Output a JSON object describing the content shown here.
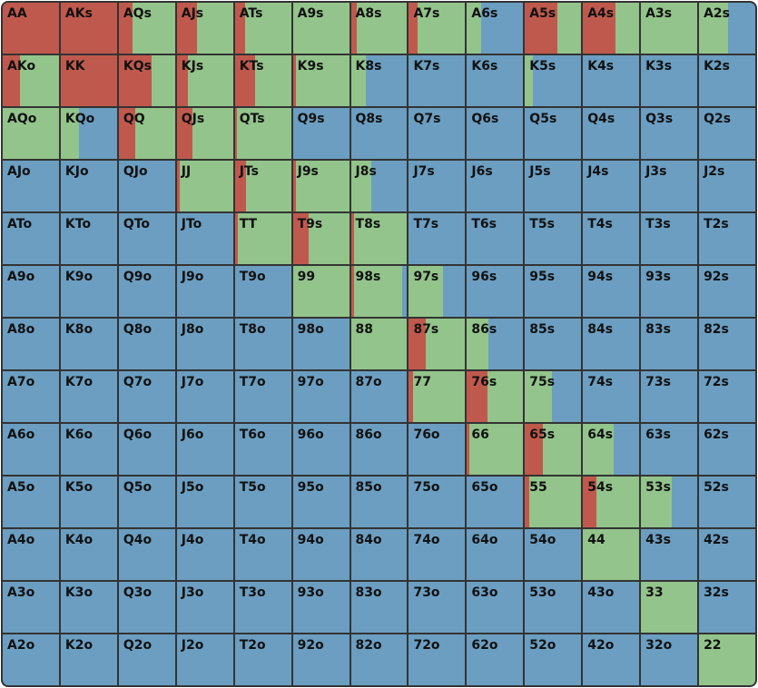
{
  "colors": {
    "raise": "#c0594d",
    "call": "#93c48b",
    "fold": "#6b9ec1"
  },
  "chart_data": {
    "type": "heatmap",
    "rows": [
      [
        {
          "hand": "AA",
          "raise": 1.0,
          "call": 0.0
        },
        {
          "hand": "AKs",
          "raise": 1.0,
          "call": 0.0
        },
        {
          "hand": "AQs",
          "raise": 0.24,
          "call": 0.76
        },
        {
          "hand": "AJs",
          "raise": 0.36,
          "call": 0.64
        },
        {
          "hand": "ATs",
          "raise": 0.18,
          "call": 0.82
        },
        {
          "hand": "A9s",
          "raise": 0.0,
          "call": 1.0
        },
        {
          "hand": "A8s",
          "raise": 0.1,
          "call": 0.9
        },
        {
          "hand": "A7s",
          "raise": 0.16,
          "call": 0.84
        },
        {
          "hand": "A6s",
          "raise": 0.0,
          "call": 0.26
        },
        {
          "hand": "A5s",
          "raise": 0.58,
          "call": 0.42
        },
        {
          "hand": "A4s",
          "raise": 0.58,
          "call": 0.42
        },
        {
          "hand": "A3s",
          "raise": 0.0,
          "call": 1.0
        },
        {
          "hand": "A2s",
          "raise": 0.0,
          "call": 0.52
        }
      ],
      [
        {
          "hand": "AKo",
          "raise": 0.3,
          "call": 0.7
        },
        {
          "hand": "KK",
          "raise": 1.0,
          "call": 0.0
        },
        {
          "hand": "KQs",
          "raise": 0.58,
          "call": 0.42
        },
        {
          "hand": "KJs",
          "raise": 0.2,
          "call": 0.8
        },
        {
          "hand": "KTs",
          "raise": 0.36,
          "call": 0.64
        },
        {
          "hand": "K9s",
          "raise": 0.05,
          "call": 0.95
        },
        {
          "hand": "K8s",
          "raise": 0.0,
          "call": 0.26
        },
        {
          "hand": "K7s",
          "raise": 0.0,
          "call": 0.0
        },
        {
          "hand": "K6s",
          "raise": 0.0,
          "call": 0.0
        },
        {
          "hand": "K5s",
          "raise": 0.0,
          "call": 0.14
        },
        {
          "hand": "K4s",
          "raise": 0.0,
          "call": 0.0
        },
        {
          "hand": "K3s",
          "raise": 0.0,
          "call": 0.0
        },
        {
          "hand": "K2s",
          "raise": 0.0,
          "call": 0.0
        }
      ],
      [
        {
          "hand": "AQo",
          "raise": 0.0,
          "call": 1.0
        },
        {
          "hand": "KQo",
          "raise": 0.0,
          "call": 0.32
        },
        {
          "hand": "QQ",
          "raise": 0.3,
          "call": 0.7
        },
        {
          "hand": "QJs",
          "raise": 0.28,
          "call": 0.72
        },
        {
          "hand": "QTs",
          "raise": 0.04,
          "call": 0.96
        },
        {
          "hand": "Q9s",
          "raise": 0.0,
          "call": 0.0
        },
        {
          "hand": "Q8s",
          "raise": 0.0,
          "call": 0.0
        },
        {
          "hand": "Q7s",
          "raise": 0.0,
          "call": 0.0
        },
        {
          "hand": "Q6s",
          "raise": 0.0,
          "call": 0.0
        },
        {
          "hand": "Q5s",
          "raise": 0.0,
          "call": 0.0
        },
        {
          "hand": "Q4s",
          "raise": 0.0,
          "call": 0.0
        },
        {
          "hand": "Q3s",
          "raise": 0.0,
          "call": 0.0
        },
        {
          "hand": "Q2s",
          "raise": 0.0,
          "call": 0.0
        }
      ],
      [
        {
          "hand": "AJo",
          "raise": 0.0,
          "call": 0.0
        },
        {
          "hand": "KJo",
          "raise": 0.0,
          "call": 0.0
        },
        {
          "hand": "QJo",
          "raise": 0.0,
          "call": 0.0
        },
        {
          "hand": "JJ",
          "raise": 0.06,
          "call": 0.94
        },
        {
          "hand": "JTs",
          "raise": 0.2,
          "call": 0.8
        },
        {
          "hand": "J9s",
          "raise": 0.05,
          "call": 0.95
        },
        {
          "hand": "J8s",
          "raise": 0.0,
          "call": 0.36
        },
        {
          "hand": "J7s",
          "raise": 0.0,
          "call": 0.0
        },
        {
          "hand": "J6s",
          "raise": 0.0,
          "call": 0.0
        },
        {
          "hand": "J5s",
          "raise": 0.0,
          "call": 0.0
        },
        {
          "hand": "J4s",
          "raise": 0.0,
          "call": 0.0
        },
        {
          "hand": "J3s",
          "raise": 0.0,
          "call": 0.0
        },
        {
          "hand": "J2s",
          "raise": 0.0,
          "call": 0.0
        }
      ],
      [
        {
          "hand": "ATo",
          "raise": 0.0,
          "call": 0.0
        },
        {
          "hand": "KTo",
          "raise": 0.0,
          "call": 0.0
        },
        {
          "hand": "QTo",
          "raise": 0.0,
          "call": 0.0
        },
        {
          "hand": "JTo",
          "raise": 0.0,
          "call": 0.0
        },
        {
          "hand": "TT",
          "raise": 0.06,
          "call": 0.94
        },
        {
          "hand": "T9s",
          "raise": 0.28,
          "call": 0.72
        },
        {
          "hand": "T8s",
          "raise": 0.05,
          "call": 0.95
        },
        {
          "hand": "T7s",
          "raise": 0.0,
          "call": 0.0
        },
        {
          "hand": "T6s",
          "raise": 0.0,
          "call": 0.0
        },
        {
          "hand": "T5s",
          "raise": 0.0,
          "call": 0.0
        },
        {
          "hand": "T4s",
          "raise": 0.0,
          "call": 0.0
        },
        {
          "hand": "T3s",
          "raise": 0.0,
          "call": 0.0
        },
        {
          "hand": "T2s",
          "raise": 0.0,
          "call": 0.0
        }
      ],
      [
        {
          "hand": "A9o",
          "raise": 0.0,
          "call": 0.0
        },
        {
          "hand": "K9o",
          "raise": 0.0,
          "call": 0.0
        },
        {
          "hand": "Q9o",
          "raise": 0.0,
          "call": 0.0
        },
        {
          "hand": "J9o",
          "raise": 0.0,
          "call": 0.0
        },
        {
          "hand": "T9o",
          "raise": 0.0,
          "call": 0.0
        },
        {
          "hand": "99",
          "raise": 0.0,
          "call": 1.0
        },
        {
          "hand": "98s",
          "raise": 0.06,
          "call": 0.86
        },
        {
          "hand": "97s",
          "raise": 0.0,
          "call": 0.6
        },
        {
          "hand": "96s",
          "raise": 0.0,
          "call": 0.0
        },
        {
          "hand": "95s",
          "raise": 0.0,
          "call": 0.0
        },
        {
          "hand": "94s",
          "raise": 0.0,
          "call": 0.0
        },
        {
          "hand": "93s",
          "raise": 0.0,
          "call": 0.0
        },
        {
          "hand": "92s",
          "raise": 0.0,
          "call": 0.0
        }
      ],
      [
        {
          "hand": "A8o",
          "raise": 0.0,
          "call": 0.0
        },
        {
          "hand": "K8o",
          "raise": 0.0,
          "call": 0.0
        },
        {
          "hand": "Q8o",
          "raise": 0.0,
          "call": 0.0
        },
        {
          "hand": "J8o",
          "raise": 0.0,
          "call": 0.0
        },
        {
          "hand": "T8o",
          "raise": 0.0,
          "call": 0.0
        },
        {
          "hand": "98o",
          "raise": 0.0,
          "call": 0.0
        },
        {
          "hand": "88",
          "raise": 0.0,
          "call": 1.0
        },
        {
          "hand": "87s",
          "raise": 0.3,
          "call": 0.7
        },
        {
          "hand": "86s",
          "raise": 0.0,
          "call": 0.38
        },
        {
          "hand": "85s",
          "raise": 0.0,
          "call": 0.0
        },
        {
          "hand": "84s",
          "raise": 0.0,
          "call": 0.0
        },
        {
          "hand": "83s",
          "raise": 0.0,
          "call": 0.0
        },
        {
          "hand": "82s",
          "raise": 0.0,
          "call": 0.0
        }
      ],
      [
        {
          "hand": "A7o",
          "raise": 0.0,
          "call": 0.0
        },
        {
          "hand": "K7o",
          "raise": 0.0,
          "call": 0.0
        },
        {
          "hand": "Q7o",
          "raise": 0.0,
          "call": 0.0
        },
        {
          "hand": "J7o",
          "raise": 0.0,
          "call": 0.0
        },
        {
          "hand": "T7o",
          "raise": 0.0,
          "call": 0.0
        },
        {
          "hand": "97o",
          "raise": 0.0,
          "call": 0.0
        },
        {
          "hand": "87o",
          "raise": 0.0,
          "call": 0.0
        },
        {
          "hand": "77",
          "raise": 0.08,
          "call": 0.92
        },
        {
          "hand": "76s",
          "raise": 0.36,
          "call": 0.64
        },
        {
          "hand": "75s",
          "raise": 0.0,
          "call": 0.48
        },
        {
          "hand": "74s",
          "raise": 0.0,
          "call": 0.0
        },
        {
          "hand": "73s",
          "raise": 0.0,
          "call": 0.0
        },
        {
          "hand": "72s",
          "raise": 0.0,
          "call": 0.0
        }
      ],
      [
        {
          "hand": "A6o",
          "raise": 0.0,
          "call": 0.0
        },
        {
          "hand": "K6o",
          "raise": 0.0,
          "call": 0.0
        },
        {
          "hand": "Q6o",
          "raise": 0.0,
          "call": 0.0
        },
        {
          "hand": "J6o",
          "raise": 0.0,
          "call": 0.0
        },
        {
          "hand": "T6o",
          "raise": 0.0,
          "call": 0.0
        },
        {
          "hand": "96o",
          "raise": 0.0,
          "call": 0.0
        },
        {
          "hand": "86o",
          "raise": 0.0,
          "call": 0.0
        },
        {
          "hand": "76o",
          "raise": 0.0,
          "call": 0.0
        },
        {
          "hand": "66",
          "raise": 0.04,
          "call": 0.96
        },
        {
          "hand": "65s",
          "raise": 0.32,
          "call": 0.68
        },
        {
          "hand": "64s",
          "raise": 0.0,
          "call": 0.54
        },
        {
          "hand": "63s",
          "raise": 0.0,
          "call": 0.0
        },
        {
          "hand": "62s",
          "raise": 0.0,
          "call": 0.0
        }
      ],
      [
        {
          "hand": "A5o",
          "raise": 0.0,
          "call": 0.0
        },
        {
          "hand": "K5o",
          "raise": 0.0,
          "call": 0.0
        },
        {
          "hand": "Q5o",
          "raise": 0.0,
          "call": 0.0
        },
        {
          "hand": "J5o",
          "raise": 0.0,
          "call": 0.0
        },
        {
          "hand": "T5o",
          "raise": 0.0,
          "call": 0.0
        },
        {
          "hand": "95o",
          "raise": 0.0,
          "call": 0.0
        },
        {
          "hand": "85o",
          "raise": 0.0,
          "call": 0.0
        },
        {
          "hand": "75o",
          "raise": 0.0,
          "call": 0.0
        },
        {
          "hand": "65o",
          "raise": 0.0,
          "call": 0.0
        },
        {
          "hand": "55",
          "raise": 0.08,
          "call": 0.92
        },
        {
          "hand": "54s",
          "raise": 0.24,
          "call": 0.76
        },
        {
          "hand": "53s",
          "raise": 0.0,
          "call": 0.54
        },
        {
          "hand": "52s",
          "raise": 0.0,
          "call": 0.0
        }
      ],
      [
        {
          "hand": "A4o",
          "raise": 0.0,
          "call": 0.0
        },
        {
          "hand": "K4o",
          "raise": 0.0,
          "call": 0.0
        },
        {
          "hand": "Q4o",
          "raise": 0.0,
          "call": 0.0
        },
        {
          "hand": "J4o",
          "raise": 0.0,
          "call": 0.0
        },
        {
          "hand": "T4o",
          "raise": 0.0,
          "call": 0.0
        },
        {
          "hand": "94o",
          "raise": 0.0,
          "call": 0.0
        },
        {
          "hand": "84o",
          "raise": 0.0,
          "call": 0.0
        },
        {
          "hand": "74o",
          "raise": 0.0,
          "call": 0.0
        },
        {
          "hand": "64o",
          "raise": 0.0,
          "call": 0.0
        },
        {
          "hand": "54o",
          "raise": 0.0,
          "call": 0.0
        },
        {
          "hand": "44",
          "raise": 0.0,
          "call": 1.0
        },
        {
          "hand": "43s",
          "raise": 0.0,
          "call": 0.0
        },
        {
          "hand": "42s",
          "raise": 0.0,
          "call": 0.0
        }
      ],
      [
        {
          "hand": "A3o",
          "raise": 0.0,
          "call": 0.0
        },
        {
          "hand": "K3o",
          "raise": 0.0,
          "call": 0.0
        },
        {
          "hand": "Q3o",
          "raise": 0.0,
          "call": 0.0
        },
        {
          "hand": "J3o",
          "raise": 0.0,
          "call": 0.0
        },
        {
          "hand": "T3o",
          "raise": 0.0,
          "call": 0.0
        },
        {
          "hand": "93o",
          "raise": 0.0,
          "call": 0.0
        },
        {
          "hand": "83o",
          "raise": 0.0,
          "call": 0.0
        },
        {
          "hand": "73o",
          "raise": 0.0,
          "call": 0.0
        },
        {
          "hand": "63o",
          "raise": 0.0,
          "call": 0.0
        },
        {
          "hand": "53o",
          "raise": 0.0,
          "call": 0.0
        },
        {
          "hand": "43o",
          "raise": 0.0,
          "call": 0.0
        },
        {
          "hand": "33",
          "raise": 0.0,
          "call": 1.0
        },
        {
          "hand": "32s",
          "raise": 0.0,
          "call": 0.0
        }
      ],
      [
        {
          "hand": "A2o",
          "raise": 0.0,
          "call": 0.0
        },
        {
          "hand": "K2o",
          "raise": 0.0,
          "call": 0.0
        },
        {
          "hand": "Q2o",
          "raise": 0.0,
          "call": 0.0
        },
        {
          "hand": "J2o",
          "raise": 0.0,
          "call": 0.0
        },
        {
          "hand": "T2o",
          "raise": 0.0,
          "call": 0.0
        },
        {
          "hand": "92o",
          "raise": 0.0,
          "call": 0.0
        },
        {
          "hand": "82o",
          "raise": 0.0,
          "call": 0.0
        },
        {
          "hand": "72o",
          "raise": 0.0,
          "call": 0.0
        },
        {
          "hand": "62o",
          "raise": 0.0,
          "call": 0.0
        },
        {
          "hand": "52o",
          "raise": 0.0,
          "call": 0.0
        },
        {
          "hand": "42o",
          "raise": 0.0,
          "call": 0.0
        },
        {
          "hand": "32o",
          "raise": 0.0,
          "call": 0.0
        },
        {
          "hand": "22",
          "raise": 0.0,
          "call": 1.0
        }
      ]
    ]
  }
}
